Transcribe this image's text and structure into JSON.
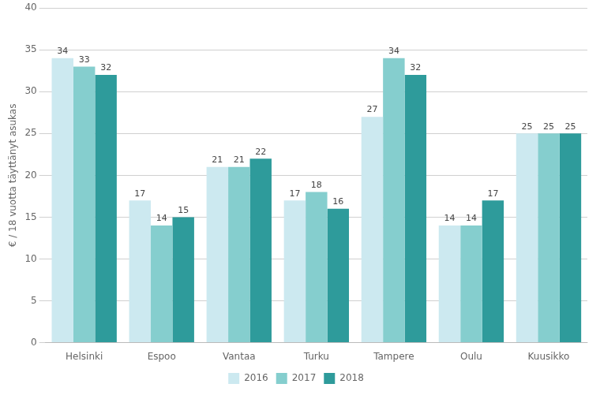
{
  "chart_data": {
    "type": "bar",
    "categories": [
      "Helsinki",
      "Espoo",
      "Vantaa",
      "Turku",
      "Tampere",
      "Oulu",
      "Kuusikko"
    ],
    "series": [
      {
        "name": "2016",
        "color": "#cce9f0",
        "values": [
          34,
          17,
          21,
          17,
          27,
          14,
          25
        ]
      },
      {
        "name": "2017",
        "color": "#85cece",
        "values": [
          33,
          14,
          21,
          18,
          34,
          14,
          25
        ]
      },
      {
        "name": "2018",
        "color": "#2e9b9b",
        "values": [
          32,
          15,
          22,
          16,
          32,
          17,
          25
        ]
      }
    ],
    "ylabel": "€ / 18 vuotta täyttänyt asukas",
    "ylim": [
      0,
      40
    ],
    "yticks": [
      0,
      5,
      10,
      15,
      20,
      25,
      30,
      35,
      40
    ],
    "grid": true,
    "legend": "bottom",
    "data_labels": true
  }
}
